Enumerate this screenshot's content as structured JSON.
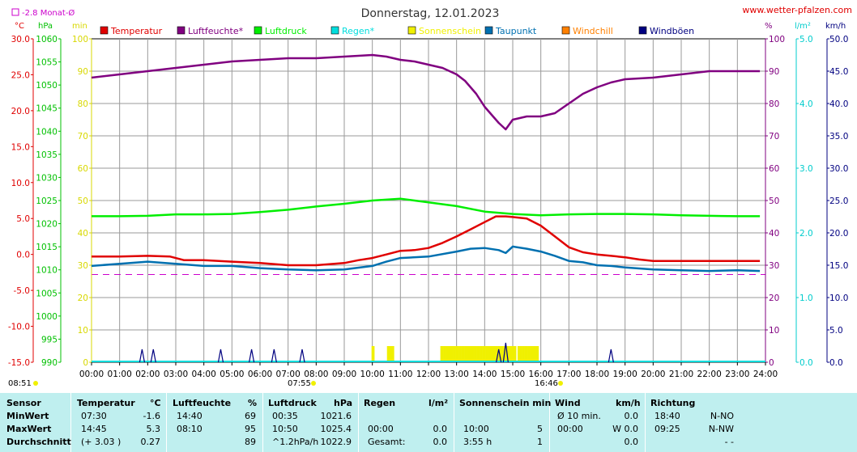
{
  "header": {
    "title": "Donnerstag, 12.01.2023",
    "site": "www.wetter-pfalzen.com",
    "month_avg": "-2.8 Monat-Ø",
    "unit_celsius": "°C",
    "unit_hpa": "hPa",
    "unit_min": "min",
    "unit_percent": "%",
    "unit_lm2": "l/m²",
    "unit_kmh": "km/h"
  },
  "legend": [
    {
      "label": "Temperatur",
      "color": "#e00000"
    },
    {
      "label": "Luftfeuchte*",
      "color": "#800080"
    },
    {
      "label": "Luftdruck",
      "color": "#00ee00"
    },
    {
      "label": "Regen*",
      "color": "#00dddd"
    },
    {
      "label": "Sonnenschein",
      "color": "#f0f000"
    },
    {
      "label": "Taupunkt",
      "color": "#0070b0"
    },
    {
      "label": "Windchill",
      "color": "#ff8000"
    },
    {
      "label": "Windböen",
      "color": "#000080"
    }
  ],
  "chart_data": {
    "type": "line",
    "title": "Donnerstag, 12.01.2023",
    "x_range": [
      0,
      24
    ],
    "x_tick_labels": [
      "00:00",
      "01:00",
      "02:00",
      "03:00",
      "04:00",
      "05:00",
      "06:00",
      "07:00",
      "08:00",
      "09:00",
      "10:00",
      "11:00",
      "12:00",
      "13:00",
      "14:00",
      "15:00",
      "16:00",
      "17:00",
      "18:00",
      "19:00",
      "20:00",
      "21:00",
      "22:00",
      "23:00",
      "24:00"
    ],
    "axes": {
      "temperature_c": {
        "range": [
          -15,
          30
        ],
        "ticks": [
          "30.0",
          "25.0",
          "20.0",
          "15.0",
          "10.0",
          "5.0",
          "0.0",
          "-5.0",
          "-10.0",
          "-15.0"
        ]
      },
      "pressure_hpa": {
        "range": [
          990,
          1060
        ],
        "ticks": [
          "1060",
          "1055",
          "1050",
          "1045",
          "1040",
          "1035",
          "1030",
          "1025",
          "1020",
          "1015",
          "1010",
          "1005",
          "1000",
          "995",
          "990"
        ]
      },
      "sunshine_min": {
        "range": [
          0,
          100
        ],
        "ticks": [
          "100",
          "90",
          "80",
          "70",
          "60",
          "50",
          "40",
          "30",
          "20",
          "10",
          "0"
        ]
      },
      "humidity_pct": {
        "range": [
          0,
          100
        ],
        "ticks": [
          "100",
          "90",
          "80",
          "70",
          "60",
          "50",
          "40",
          "30",
          "20",
          "10",
          "0"
        ]
      },
      "rain_lm2": {
        "range": [
          0,
          5
        ],
        "ticks": [
          "5.0",
          "4.0",
          "3.0",
          "2.0",
          "1.0",
          "0.0"
        ]
      },
      "wind_kmh": {
        "range": [
          0,
          50
        ],
        "ticks": [
          "50.0",
          "45.0",
          "40.0",
          "35.0",
          "30.0",
          "25.0",
          "20.0",
          "15.0",
          "10.0",
          "5.0",
          "0.0"
        ]
      }
    },
    "month_avg_temp": -2.8,
    "series": [
      {
        "name": "Temperatur",
        "color": "#e00000",
        "axis": "temperature_c",
        "x": [
          0,
          1,
          2,
          2.8,
          3.3,
          4,
          5,
          6,
          7,
          8,
          9,
          9.5,
          10,
          10.5,
          11,
          11.5,
          12,
          12.5,
          13,
          13.5,
          14,
          14.4,
          14.75,
          15,
          15.5,
          16,
          16.5,
          17,
          17.5,
          18,
          18.5,
          19,
          19.5,
          20,
          21,
          22,
          23,
          23.8
        ],
        "y": [
          -0.3,
          -0.3,
          -0.2,
          -0.3,
          -0.8,
          -0.8,
          -1.0,
          -1.2,
          -1.5,
          -1.5,
          -1.2,
          -0.8,
          -0.5,
          0,
          0.5,
          0.6,
          0.9,
          1.6,
          2.5,
          3.5,
          4.5,
          5.3,
          5.3,
          5.2,
          5,
          4,
          2.5,
          1,
          0.3,
          0,
          -0.2,
          -0.4,
          -0.7,
          -0.9,
          -0.9,
          -0.9,
          -0.9,
          -0.9
        ]
      },
      {
        "name": "Luftfeuchte*",
        "color": "#800080",
        "axis": "humidity_pct",
        "x": [
          0,
          1,
          2,
          3,
          4,
          5,
          6,
          7,
          8,
          9,
          10,
          10.5,
          11,
          11.5,
          12,
          12.5,
          13,
          13.3,
          13.7,
          14,
          14.3,
          14.5,
          14.75,
          15,
          15.5,
          16,
          16.5,
          17,
          17.5,
          18,
          18.5,
          19,
          20,
          21,
          22,
          23,
          23.8
        ],
        "y": [
          88,
          89,
          90,
          91,
          92,
          93,
          93.5,
          94,
          94,
          94.5,
          95,
          94.5,
          93.5,
          93,
          92,
          91,
          89,
          87,
          83,
          79,
          76,
          74,
          72,
          75,
          76,
          76,
          77,
          80,
          83,
          85,
          86.5,
          87.5,
          88,
          89,
          90,
          90,
          90
        ]
      },
      {
        "name": "Luftdruck",
        "color": "#00ee00",
        "axis": "pressure_hpa",
        "x": [
          0,
          1,
          2,
          3,
          4,
          5,
          6,
          7,
          8,
          9,
          10,
          11,
          11.5,
          12,
          13,
          14,
          15,
          16,
          17,
          18,
          19,
          20,
          21,
          22,
          23,
          23.8
        ],
        "y": [
          1021.6,
          1021.6,
          1021.7,
          1022,
          1022,
          1022.1,
          1022.5,
          1023,
          1023.7,
          1024.3,
          1025,
          1025.4,
          1025,
          1024.6,
          1023.8,
          1022.6,
          1022.1,
          1021.8,
          1022,
          1022.1,
          1022.1,
          1022,
          1021.8,
          1021.7,
          1021.6,
          1021.6
        ]
      },
      {
        "name": "Taupunkt",
        "color": "#0070b0",
        "axis": "temperature_c",
        "x": [
          0,
          1,
          2,
          3,
          4,
          5,
          6,
          7,
          8,
          9,
          10,
          10.5,
          11,
          12,
          13,
          13.5,
          14,
          14.5,
          14.75,
          15,
          15.5,
          16,
          16.5,
          17,
          17.5,
          18,
          18.5,
          19,
          20,
          21,
          22,
          23,
          23.8
        ],
        "y": [
          -1.6,
          -1.3,
          -1,
          -1.3,
          -1.6,
          -1.6,
          -1.9,
          -2.1,
          -2.2,
          -2.1,
          -1.6,
          -1,
          -0.5,
          -0.3,
          0.4,
          0.8,
          0.9,
          0.6,
          0.2,
          1.1,
          0.8,
          0.4,
          -0.2,
          -0.9,
          -1.1,
          -1.5,
          -1.6,
          -1.8,
          -2.1,
          -2.2,
          -2.3,
          -2.2,
          -2.3
        ]
      }
    ],
    "sunshine_bars": {
      "color": "#f0f000",
      "x": [
        10,
        11,
        11.1,
        11.2,
        12.5,
        14.9
      ],
      "note_sunrise": "07:55",
      "note_sunset": "16:46"
    },
    "gusts": {
      "color": "#000080",
      "x": [
        1.8,
        2.2,
        4.6,
        5.7,
        6.5,
        7.5,
        14.5,
        14.75,
        18.5
      ],
      "y": [
        2,
        2,
        2,
        2,
        2,
        2,
        2,
        3,
        2
      ]
    },
    "markers": {
      "sunrise": "07:55",
      "sunset": "16:46",
      "snapshot_time": "08:51"
    }
  },
  "stats": {
    "headers": {
      "sensor": "Sensor",
      "temperature": "Temperatur",
      "temperature_unit": "°C",
      "humidity": "Luftfeuchte",
      "humidity_unit": "%",
      "pressure": "Luftdruck",
      "pressure_unit": "hPa",
      "rain": "Regen",
      "rain_unit": "l/m²",
      "sun": "Sonnenschein min",
      "wind": "Wind",
      "wind_unit": "km/h",
      "direction": "Richtung"
    },
    "rows": [
      {
        "label": "MinWert",
        "t_time": "07:30",
        "t_val": "-1.6",
        "h_time": "14:40",
        "h_val": "69",
        "p_time": "00:35",
        "p_val": "1021.6",
        "r_time": "",
        "r_val": "",
        "s_time": "",
        "s_val": "",
        "w_time": "Ø 10 min.",
        "w_val": "0.0",
        "d_time": "18:40",
        "d_val": "N-NO"
      },
      {
        "label": "MaxWert",
        "t_time": "14:45",
        "t_val": "5.3",
        "h_time": "08:10",
        "h_val": "95",
        "p_time": "10:50",
        "p_val": "1025.4",
        "r_time": "00:00",
        "r_val": "0.0",
        "s_time": "10:00",
        "s_val": "5",
        "w_time": "00:00",
        "w_val": "W 0.0",
        "d_time": "09:25",
        "d_val": "N-NW"
      },
      {
        "label": "Durchschnitt",
        "t_time": "(+ 3.03 )",
        "t_val": "0.27",
        "h_time": "",
        "h_val": "89",
        "p_time": "^1.2hPa/h",
        "p_val": "1022.9",
        "r_time": "Gesamt:",
        "r_val": "0.0",
        "s_time": "3:55 h",
        "s_val": "1",
        "w_time": "",
        "w_val": "0.0",
        "d_time": "",
        "d_val": "- -"
      }
    ]
  }
}
